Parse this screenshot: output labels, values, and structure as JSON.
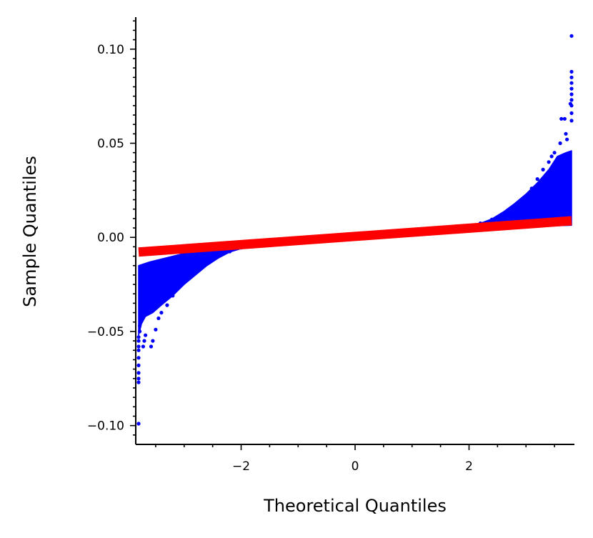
{
  "chart_data": {
    "type": "scatter",
    "title": "",
    "xlabel": "Theoretical Quantiles",
    "ylabel": "Sample Quantiles",
    "xlim": [
      -3.85,
      3.85
    ],
    "ylim": [
      -0.11,
      0.117
    ],
    "x_ticks": [
      -2,
      0,
      2
    ],
    "x_tick_labels": [
      "−2",
      "0",
      "2"
    ],
    "y_ticks": [
      -0.1,
      -0.05,
      0.0,
      0.05,
      0.1
    ],
    "y_tick_labels": [
      "−0.10",
      "−0.05",
      "0.00",
      "0.05",
      "0.10"
    ],
    "grid": false,
    "legend": "none",
    "colors": {
      "points": "#0000ff",
      "reference_line": "#ff0000",
      "axes": "#000000"
    },
    "series": [
      {
        "kind": "points",
        "points": [
          [
            -3.8,
            -0.099
          ],
          [
            -3.8,
            -0.077
          ],
          [
            -3.8,
            -0.075
          ],
          [
            -3.8,
            -0.072
          ],
          [
            -3.8,
            -0.068
          ],
          [
            -3.8,
            -0.064
          ],
          [
            -3.8,
            -0.06
          ],
          [
            -3.8,
            -0.058
          ],
          [
            -3.8,
            -0.055
          ],
          [
            -3.8,
            -0.053
          ],
          [
            -3.78,
            -0.05
          ],
          [
            -3.78,
            -0.047
          ],
          [
            -3.76,
            -0.044
          ],
          [
            -3.75,
            -0.042
          ],
          [
            -3.72,
            -0.058
          ],
          [
            -3.7,
            -0.055
          ],
          [
            -3.68,
            -0.052
          ],
          [
            -3.58,
            -0.058
          ],
          [
            -3.55,
            -0.055
          ],
          [
            -3.5,
            -0.049
          ],
          [
            -3.45,
            -0.043
          ],
          [
            -3.4,
            -0.04
          ],
          [
            -3.3,
            -0.036
          ],
          [
            -3.2,
            -0.031
          ],
          [
            -3.1,
            -0.026
          ],
          [
            -3.0,
            -0.022
          ],
          [
            -2.8,
            -0.017
          ],
          [
            -2.6,
            -0.0125
          ],
          [
            -2.4,
            -0.0095
          ],
          [
            -2.2,
            -0.0075
          ],
          [
            -2.0,
            -0.0055
          ],
          [
            -1.5,
            -0.0032
          ],
          [
            -1.0,
            -0.0017
          ],
          [
            -0.5,
            -0.0006
          ],
          [
            0.0,
            0.0
          ],
          [
            0.5,
            0.0006
          ],
          [
            1.0,
            0.0017
          ],
          [
            1.5,
            0.0032
          ],
          [
            2.0,
            0.0055
          ],
          [
            2.2,
            0.0075
          ],
          [
            2.4,
            0.0095
          ],
          [
            2.6,
            0.0125
          ],
          [
            2.8,
            0.017
          ],
          [
            3.0,
            0.022
          ],
          [
            3.1,
            0.026
          ],
          [
            3.2,
            0.031
          ],
          [
            3.3,
            0.036
          ],
          [
            3.4,
            0.04
          ],
          [
            3.45,
            0.043
          ],
          [
            3.5,
            0.045
          ],
          [
            3.6,
            0.05
          ],
          [
            3.62,
            0.063
          ],
          [
            3.68,
            0.063
          ],
          [
            3.7,
            0.055
          ],
          [
            3.72,
            0.052
          ],
          [
            3.78,
            0.071
          ],
          [
            3.8,
            0.062
          ],
          [
            3.8,
            0.066
          ],
          [
            3.8,
            0.07
          ],
          [
            3.8,
            0.073
          ],
          [
            3.8,
            0.076
          ],
          [
            3.8,
            0.079
          ],
          [
            3.8,
            0.082
          ],
          [
            3.8,
            0.085
          ],
          [
            3.8,
            0.088
          ],
          [
            3.8,
            0.107
          ]
        ],
        "lower_band": [
          [
            -3.8,
            -0.052
          ],
          [
            -3.75,
            -0.046
          ],
          [
            -3.68,
            -0.042
          ],
          [
            -3.55,
            -0.04
          ],
          [
            -3.4,
            -0.036
          ],
          [
            -3.2,
            -0.031
          ],
          [
            -3.0,
            -0.025
          ],
          [
            -2.8,
            -0.02
          ],
          [
            -2.6,
            -0.015
          ],
          [
            -2.4,
            -0.011
          ],
          [
            -2.2,
            -0.0078
          ],
          [
            -2.0,
            -0.006
          ],
          [
            -1.5,
            -0.0036
          ],
          [
            -1.0,
            -0.0021
          ],
          [
            -0.5,
            -0.001
          ],
          [
            0.0,
            -0.0004
          ],
          [
            0.5,
            0.0002
          ],
          [
            1.0,
            0.001
          ],
          [
            1.5,
            0.002
          ],
          [
            2.0,
            0.0032
          ],
          [
            2.4,
            0.0042
          ],
          [
            2.8,
            0.005
          ],
          [
            3.2,
            0.0058
          ],
          [
            3.6,
            0.0062
          ],
          [
            3.8,
            0.0064
          ]
        ],
        "upper_band": [
          [
            -3.8,
            -0.015
          ],
          [
            -3.6,
            -0.013
          ],
          [
            -3.2,
            -0.01
          ],
          [
            -2.8,
            -0.007
          ],
          [
            -2.4,
            -0.0045
          ],
          [
            -2.0,
            -0.0032
          ],
          [
            -1.5,
            -0.002
          ],
          [
            -1.0,
            -0.001
          ],
          [
            -0.5,
            0.001
          ],
          [
            0.0,
            0.0016
          ],
          [
            0.5,
            0.0022
          ],
          [
            1.0,
            0.0036
          ],
          [
            1.5,
            0.005
          ],
          [
            2.0,
            0.0062
          ],
          [
            2.2,
            0.0075
          ],
          [
            2.4,
            0.0098
          ],
          [
            2.6,
            0.0135
          ],
          [
            2.8,
            0.018
          ],
          [
            3.0,
            0.023
          ],
          [
            3.2,
            0.029
          ],
          [
            3.4,
            0.036
          ],
          [
            3.55,
            0.043
          ],
          [
            3.7,
            0.045
          ],
          [
            3.8,
            0.046
          ]
        ]
      },
      {
        "kind": "reference_line",
        "x": [
          -3.8,
          3.8
        ],
        "y": [
          -0.0078,
          0.0088
        ]
      }
    ]
  }
}
